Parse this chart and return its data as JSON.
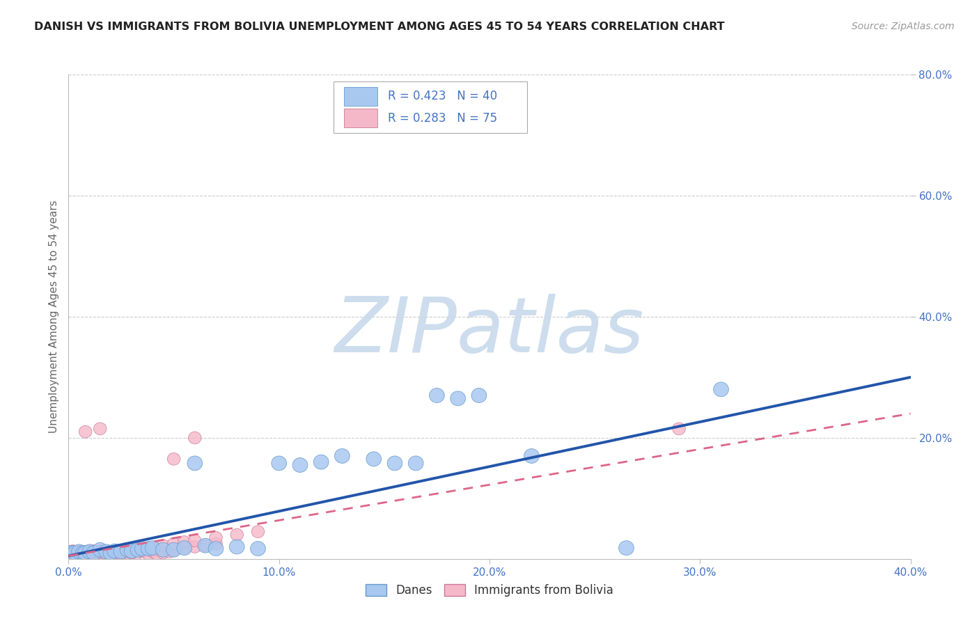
{
  "title": "DANISH VS IMMIGRANTS FROM BOLIVIA UNEMPLOYMENT AMONG AGES 45 TO 54 YEARS CORRELATION CHART",
  "source": "Source: ZipAtlas.com",
  "ylabel": "Unemployment Among Ages 45 to 54 years",
  "xlim": [
    0.0,
    0.4
  ],
  "ylim": [
    0.0,
    0.8
  ],
  "xticks": [
    0.0,
    0.1,
    0.2,
    0.3,
    0.4
  ],
  "yticks": [
    0.2,
    0.4,
    0.6,
    0.8
  ],
  "xtick_labels": [
    "0.0%",
    "10.0%",
    "20.0%",
    "30.0%",
    "40.0%"
  ],
  "ytick_labels": [
    "20.0%",
    "40.0%",
    "60.0%",
    "80.0%"
  ],
  "danes_color": "#a8c8f0",
  "danes_edge_color": "#6699cc",
  "bolivia_color": "#f5b8c8",
  "bolivia_edge_color": "#cc7799",
  "trend_danes_color": "#2255aa",
  "trend_bolivia_color": "#dd6688",
  "danes_R": 0.423,
  "danes_N": 40,
  "bolivia_R": 0.283,
  "bolivia_N": 75,
  "watermark_text": "ZIPatlas",
  "watermark_color": "#c5d8ea",
  "background_color": "#ffffff",
  "grid_color": "#cccccc",
  "danes_x": [
    0.001,
    0.002,
    0.003,
    0.005,
    0.007,
    0.008,
    0.01,
    0.012,
    0.015,
    0.018,
    0.02,
    0.022,
    0.025,
    0.028,
    0.03,
    0.033,
    0.035,
    0.038,
    0.04,
    0.045,
    0.05,
    0.055,
    0.06,
    0.065,
    0.07,
    0.08,
    0.09,
    0.1,
    0.11,
    0.12,
    0.13,
    0.145,
    0.155,
    0.165,
    0.175,
    0.185,
    0.195,
    0.22,
    0.265,
    0.31
  ],
  "danes_y": [
    0.01,
    0.008,
    0.01,
    0.012,
    0.01,
    0.01,
    0.012,
    0.01,
    0.015,
    0.012,
    0.01,
    0.013,
    0.012,
    0.015,
    0.013,
    0.015,
    0.017,
    0.017,
    0.018,
    0.015,
    0.015,
    0.018,
    0.158,
    0.022,
    0.017,
    0.02,
    0.017,
    0.158,
    0.155,
    0.16,
    0.17,
    0.165,
    0.158,
    0.158,
    0.27,
    0.265,
    0.27,
    0.17,
    0.018,
    0.28
  ],
  "bolivia_x": [
    0.001,
    0.001,
    0.001,
    0.002,
    0.002,
    0.002,
    0.003,
    0.003,
    0.003,
    0.004,
    0.004,
    0.005,
    0.005,
    0.006,
    0.006,
    0.007,
    0.007,
    0.008,
    0.008,
    0.009,
    0.009,
    0.01,
    0.01,
    0.011,
    0.011,
    0.012,
    0.012,
    0.013,
    0.013,
    0.014,
    0.015,
    0.015,
    0.016,
    0.016,
    0.017,
    0.018,
    0.019,
    0.02,
    0.021,
    0.022,
    0.023,
    0.024,
    0.025,
    0.026,
    0.027,
    0.028,
    0.029,
    0.03,
    0.032,
    0.035,
    0.038,
    0.04,
    0.042,
    0.045,
    0.048,
    0.05,
    0.055,
    0.06,
    0.065,
    0.07,
    0.03,
    0.035,
    0.04,
    0.045,
    0.05,
    0.055,
    0.06,
    0.07,
    0.08,
    0.09,
    0.05,
    0.06,
    0.008,
    0.015,
    0.29
  ],
  "bolivia_y": [
    0.008,
    0.01,
    0.012,
    0.008,
    0.01,
    0.013,
    0.008,
    0.01,
    0.012,
    0.008,
    0.012,
    0.008,
    0.012,
    0.008,
    0.012,
    0.008,
    0.012,
    0.008,
    0.012,
    0.008,
    0.012,
    0.008,
    0.013,
    0.008,
    0.012,
    0.008,
    0.013,
    0.008,
    0.012,
    0.008,
    0.008,
    0.013,
    0.008,
    0.012,
    0.008,
    0.008,
    0.012,
    0.008,
    0.012,
    0.008,
    0.012,
    0.008,
    0.008,
    0.012,
    0.008,
    0.012,
    0.008,
    0.012,
    0.008,
    0.012,
    0.008,
    0.012,
    0.008,
    0.01,
    0.012,
    0.015,
    0.018,
    0.02,
    0.022,
    0.025,
    0.01,
    0.015,
    0.018,
    0.022,
    0.025,
    0.028,
    0.03,
    0.035,
    0.04,
    0.045,
    0.165,
    0.2,
    0.21,
    0.215,
    0.215
  ],
  "trend_danes_x0": 0.0,
  "trend_danes_y0": 0.005,
  "trend_danes_x1": 0.4,
  "trend_danes_y1": 0.3,
  "trend_bolivia_x0": 0.0,
  "trend_bolivia_y0": 0.005,
  "trend_bolivia_x1": 0.4,
  "trend_bolivia_y1": 0.24
}
